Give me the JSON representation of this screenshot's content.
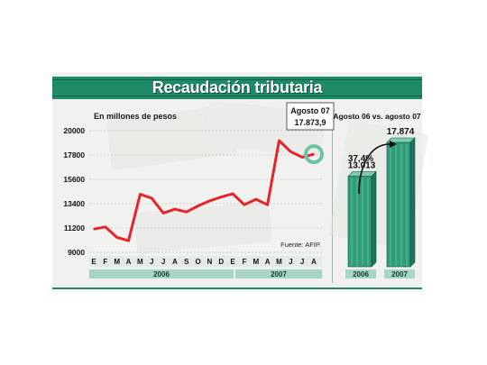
{
  "header": {
    "title": "Recaudación tributaria"
  },
  "left_chart": {
    "unit_label": "En millones de pesos",
    "source": "Fuente: AFIP.",
    "callout_title": "Agosto 07",
    "callout_value": "17.873,9",
    "year_labels": [
      "2006",
      "2007"
    ]
  },
  "right_chart": {
    "title": "Agosto 06 vs. agosto 07",
    "growth_label": "37,4%"
  },
  "colors": {
    "accent": "#1f8a68",
    "line": "#e3262c",
    "bar": "#2f9c7a"
  },
  "chart_data": [
    {
      "type": "line",
      "categories": [
        "E",
        "F",
        "M",
        "A",
        "M",
        "J",
        "J",
        "A",
        "S",
        "O",
        "N",
        "D",
        "E",
        "F",
        "M",
        "A",
        "M",
        "J",
        "J",
        "A"
      ],
      "series": [
        {
          "values": [
            11100,
            11300,
            10350,
            10050,
            14250,
            13900,
            12550,
            12900,
            12650,
            13200,
            13650,
            14000,
            14300,
            13300,
            13800,
            13300,
            19100,
            18100,
            17600,
            17874
          ]
        }
      ],
      "yticks": [
        9000,
        11200,
        13400,
        15600,
        17800,
        20000
      ],
      "ylim": [
        9000,
        20000
      ],
      "ylabel": "En millones de pesos",
      "grid": true
    },
    {
      "type": "bar",
      "categories": [
        "2006",
        "2007"
      ],
      "values": [
        13013,
        17874
      ],
      "value_labels": [
        "13.013",
        "17.874"
      ],
      "title": "Agosto 06 vs. agosto 07"
    }
  ]
}
